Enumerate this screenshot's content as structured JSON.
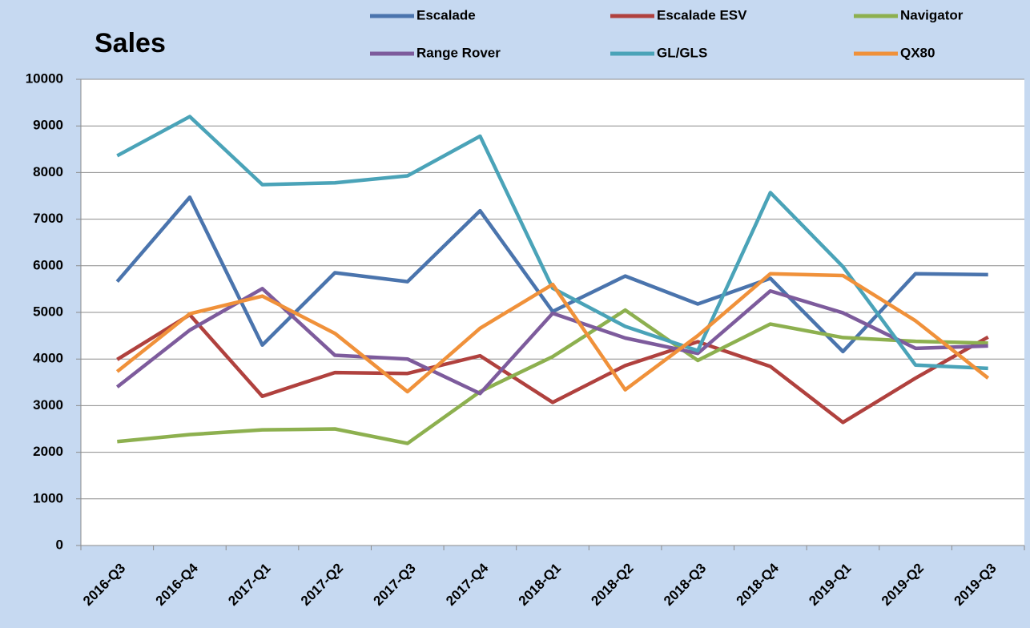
{
  "chart_data": {
    "type": "line",
    "title": "Sales",
    "categories": [
      "2016-Q3",
      "2016-Q4",
      "2017-Q1",
      "2017-Q2",
      "2017-Q3",
      "2017-Q4",
      "2018-Q1",
      "2018-Q2",
      "2018-Q3",
      "2018-Q4",
      "2019-Q1",
      "2019-Q2",
      "2019-Q3"
    ],
    "series": [
      {
        "name": "Escalade",
        "color": "#4a74ad",
        "values": [
          5660,
          7470,
          4300,
          5850,
          5660,
          7180,
          5020,
          5780,
          5180,
          5730,
          4160,
          5830,
          5810
        ]
      },
      {
        "name": "Escalade ESV",
        "color": "#b0413e",
        "values": [
          3990,
          4950,
          3200,
          3710,
          3690,
          4070,
          3070,
          3860,
          4370,
          3840,
          2640,
          3590,
          4470
        ]
      },
      {
        "name": "Navigator",
        "color": "#8db04f",
        "values": [
          2230,
          2380,
          2480,
          2500,
          2190,
          3300,
          4050,
          5050,
          3970,
          4750,
          4460,
          4380,
          4340
        ]
      },
      {
        "name": "Range Rover",
        "color": "#7d5b9c",
        "values": [
          3400,
          4620,
          5510,
          4080,
          4000,
          3260,
          4980,
          4450,
          4120,
          5460,
          4990,
          4230,
          4280
        ]
      },
      {
        "name": "GL/GLS",
        "color": "#4aa3b8",
        "values": [
          8360,
          9200,
          7740,
          7780,
          7930,
          8780,
          5520,
          4700,
          4180,
          7570,
          5980,
          3870,
          3800
        ]
      },
      {
        "name": "QX80",
        "color": "#f0913a",
        "values": [
          3730,
          4970,
          5350,
          4550,
          3300,
          4660,
          5600,
          3340,
          4500,
          5830,
          5790,
          4820,
          3590
        ]
      }
    ],
    "ylim": [
      0,
      10000
    ],
    "yticks": [
      0,
      1000,
      2000,
      3000,
      4000,
      5000,
      6000,
      7000,
      8000,
      9000,
      10000
    ],
    "grid": true
  }
}
